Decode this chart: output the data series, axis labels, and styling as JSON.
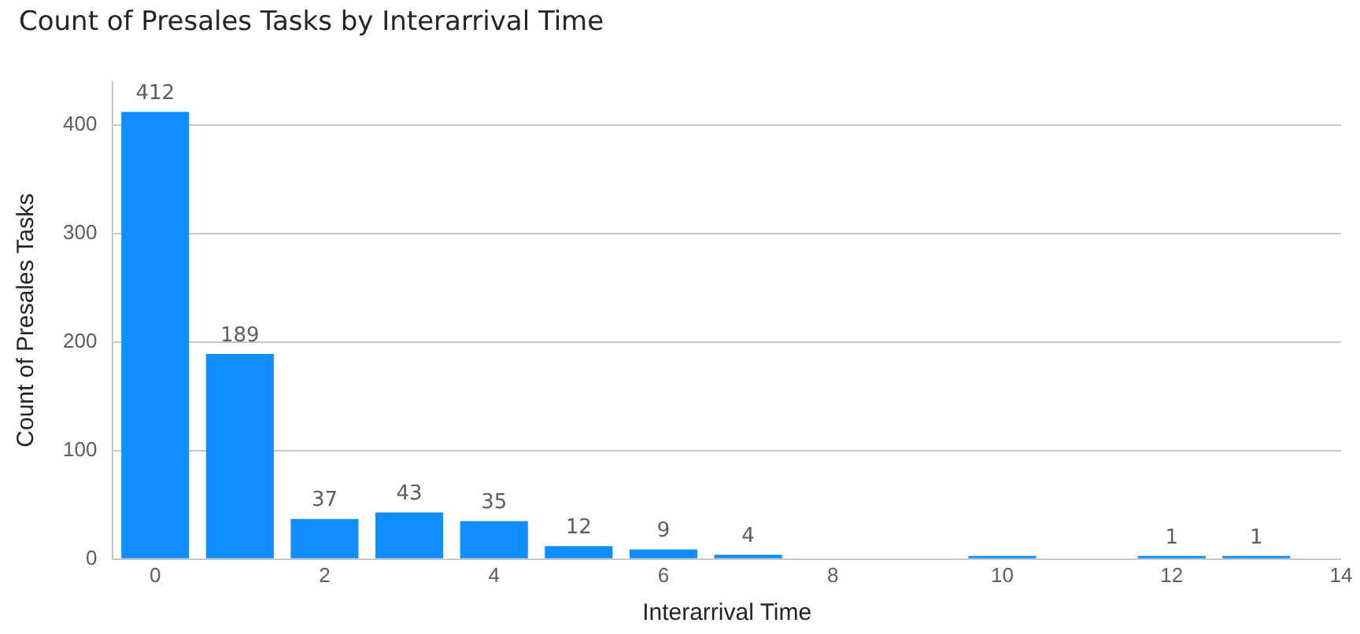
{
  "chart_data": {
    "type": "bar",
    "title": "Count of Presales Tasks by Interarrival Time",
    "xlabel": "Interarrival Time",
    "ylabel": "Count of Presales Tasks",
    "x": [
      0,
      1,
      2,
      3,
      4,
      5,
      6,
      7,
      10,
      12,
      13
    ],
    "values": [
      412,
      189,
      37,
      43,
      35,
      12,
      9,
      4,
      1,
      1,
      1
    ],
    "value_labels": [
      "412",
      "189",
      "37",
      "43",
      "35",
      "12",
      "9",
      "4",
      null,
      "1",
      "1"
    ],
    "color": "#118dff",
    "xlim": [
      -0.5,
      14
    ],
    "xticks": [
      0,
      2,
      4,
      6,
      8,
      10,
      12,
      14
    ],
    "ylim": [
      0,
      440
    ],
    "yticks": [
      0,
      100,
      200,
      300,
      400
    ],
    "grid": "y",
    "legend": false
  }
}
